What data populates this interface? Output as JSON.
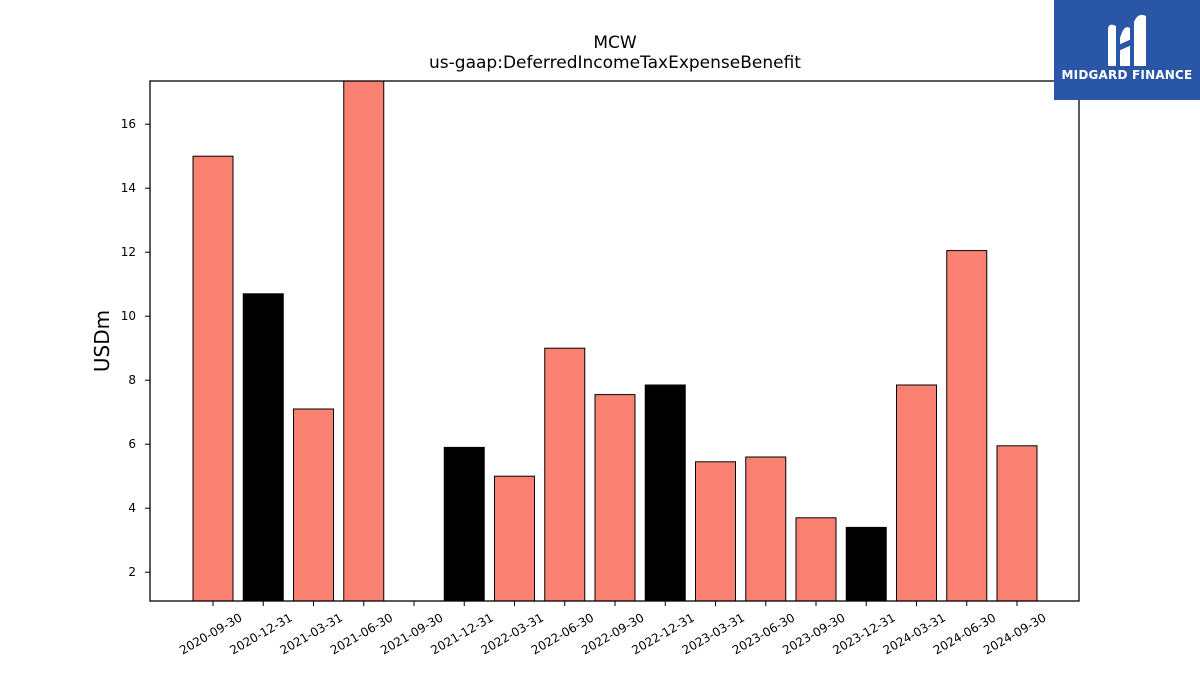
{
  "chart_data": {
    "type": "bar",
    "title": "MCW",
    "subtitle": "us-gaap:DeferredIncomeTaxExpenseBenefit",
    "xlabel": "",
    "ylabel": "USDm",
    "ylim": [
      1.1,
      17.35
    ],
    "yticks": [
      2,
      4,
      6,
      8,
      10,
      12,
      14,
      16
    ],
    "grid": false,
    "categories": [
      "2020-09-30",
      "2020-12-31",
      "2021-03-31",
      "2021-06-30",
      "2021-09-30",
      "2021-12-31",
      "2022-03-31",
      "2022-06-30",
      "2022-09-30",
      "2022-12-31",
      "2023-03-31",
      "2023-06-30",
      "2023-09-30",
      "2023-12-31",
      "2024-03-31",
      "2024-06-30",
      "2024-09-30"
    ],
    "values": [
      15.0,
      10.7,
      7.1,
      17.35,
      null,
      5.9,
      5.0,
      9.0,
      7.55,
      7.85,
      5.45,
      5.6,
      3.7,
      3.4,
      7.85,
      12.05,
      5.95
    ],
    "bar_colors": [
      "#fa8072",
      "#000000",
      "#fa8072",
      "#fa8072",
      "#fa8072",
      "#000000",
      "#fa8072",
      "#fa8072",
      "#fa8072",
      "#000000",
      "#fa8072",
      "#fa8072",
      "#fa8072",
      "#000000",
      "#fa8072",
      "#fa8072",
      "#fa8072"
    ]
  },
  "logo": {
    "text": "MIDGARD FINANCE",
    "background": "#2a56a8"
  }
}
